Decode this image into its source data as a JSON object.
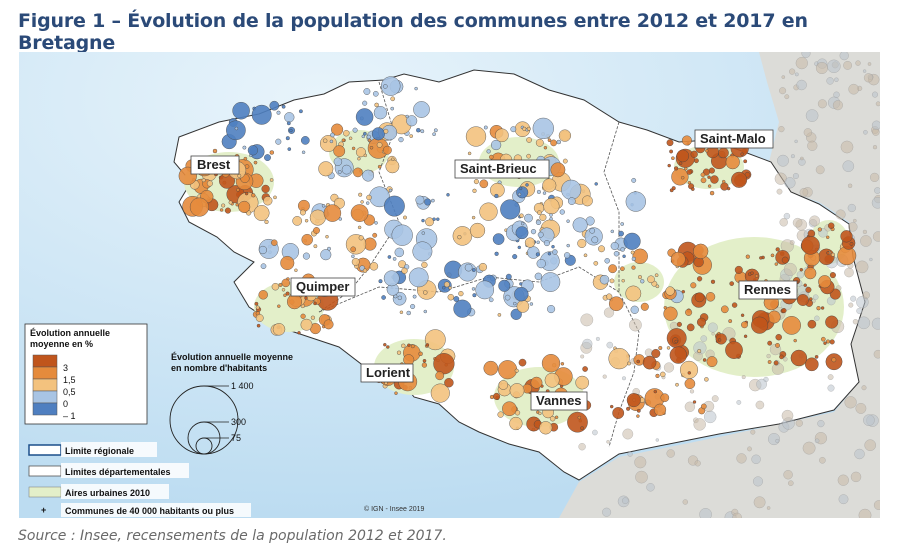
{
  "title": "Figure 1 – Évolution de la population des communes entre 2012 et 2017 en Bretagne",
  "source": "Source : Insee, recensements de la population 2012 et 2017.",
  "credit": "© IGN - Insee 2019",
  "cities": {
    "brest": "Brest",
    "saint_brieuc": "Saint-Brieuc",
    "saint_malo": "Saint-Malo",
    "quimper": "Quimper",
    "lorient": "Lorient",
    "vannes": "Vannes",
    "rennes": "Rennes"
  },
  "legend": {
    "color_title_1": "Évolution annuelle",
    "color_title_2": "moyenne en %",
    "classes": [
      {
        "label": "3",
        "color": "#c0551c"
      },
      {
        "label": "1,5",
        "color": "#e58b3c"
      },
      {
        "label": "0,5",
        "color": "#f3c27e"
      },
      {
        "label": "0",
        "color": "#a8c4e4"
      },
      {
        "label": "– 1",
        "color": "#4f7fc0"
      }
    ],
    "size_title_1": "Évolution annuelle moyenne",
    "size_title_2": "en nombre d'habitants",
    "size_values": [
      "1 400",
      "300",
      "75"
    ],
    "items": {
      "limite_regionale": "Limite régionale",
      "limites_departementales": "Limites départementales",
      "aires_urbaines": "Aires urbaines 2010",
      "communes_40000": "Communes de 40 000 habitants ou plus"
    }
  },
  "colors": {
    "sea": "#cfe8f7",
    "land": "#ffffff",
    "outside": "#dcdcd8",
    "urban": "#e3efc9"
  }
}
